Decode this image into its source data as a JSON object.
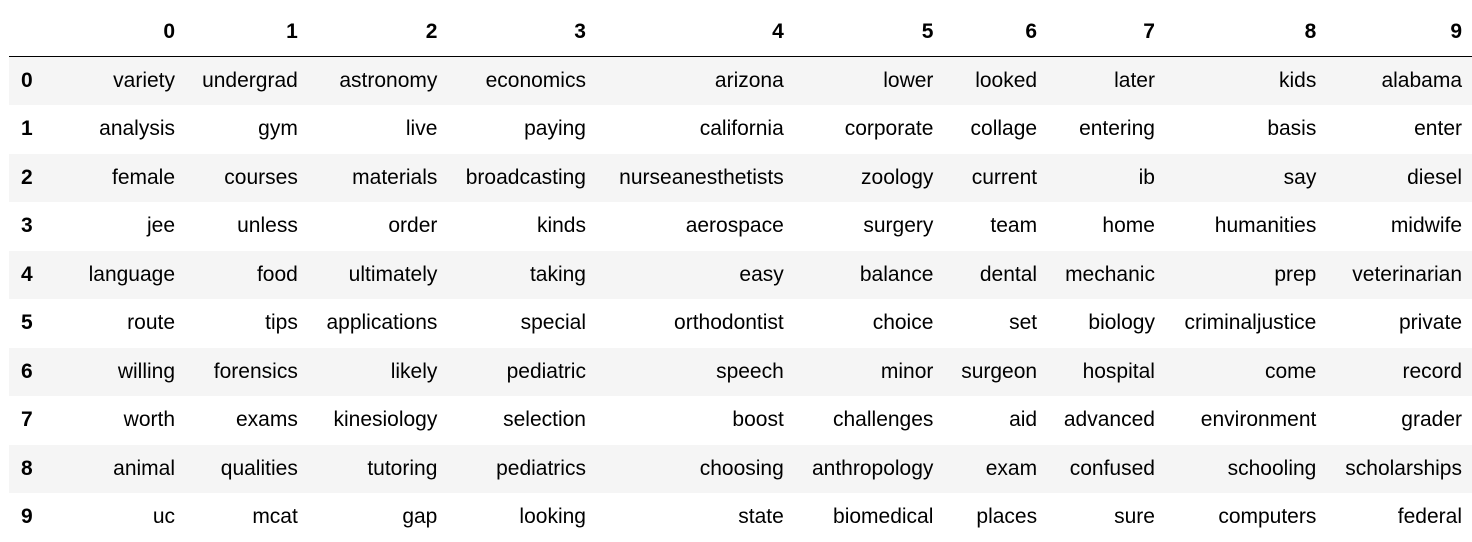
{
  "table": {
    "index_header": "",
    "columns": [
      "0",
      "1",
      "2",
      "3",
      "4",
      "5",
      "6",
      "7",
      "8",
      "9"
    ],
    "rows": [
      {
        "index": "0",
        "cells": [
          "variety",
          "undergrad",
          "astronomy",
          "economics",
          "arizona",
          "lower",
          "looked",
          "later",
          "kids",
          "alabama"
        ]
      },
      {
        "index": "1",
        "cells": [
          "analysis",
          "gym",
          "live",
          "paying",
          "california",
          "corporate",
          "collage",
          "entering",
          "basis",
          "enter"
        ]
      },
      {
        "index": "2",
        "cells": [
          "female",
          "courses",
          "materials",
          "broadcasting",
          "nurseanesthetists",
          "zoology",
          "current",
          "ib",
          "say",
          "diesel"
        ]
      },
      {
        "index": "3",
        "cells": [
          "jee",
          "unless",
          "order",
          "kinds",
          "aerospace",
          "surgery",
          "team",
          "home",
          "humanities",
          "midwife"
        ]
      },
      {
        "index": "4",
        "cells": [
          "language",
          "food",
          "ultimately",
          "taking",
          "easy",
          "balance",
          "dental",
          "mechanic",
          "prep",
          "veterinarian"
        ]
      },
      {
        "index": "5",
        "cells": [
          "route",
          "tips",
          "applications",
          "special",
          "orthodontist",
          "choice",
          "set",
          "biology",
          "criminaljustice",
          "private"
        ]
      },
      {
        "index": "6",
        "cells": [
          "willing",
          "forensics",
          "likely",
          "pediatric",
          "speech",
          "minor",
          "surgeon",
          "hospital",
          "come",
          "record"
        ]
      },
      {
        "index": "7",
        "cells": [
          "worth",
          "exams",
          "kinesiology",
          "selection",
          "boost",
          "challenges",
          "aid",
          "advanced",
          "environment",
          "grader"
        ]
      },
      {
        "index": "8",
        "cells": [
          "animal",
          "qualities",
          "tutoring",
          "pediatrics",
          "choosing",
          "anthropology",
          "exam",
          "confused",
          "schooling",
          "scholarships"
        ]
      },
      {
        "index": "9",
        "cells": [
          "uc",
          "mcat",
          "gap",
          "looking",
          "state",
          "biomedical",
          "places",
          "sure",
          "computers",
          "federal"
        ]
      }
    ]
  }
}
